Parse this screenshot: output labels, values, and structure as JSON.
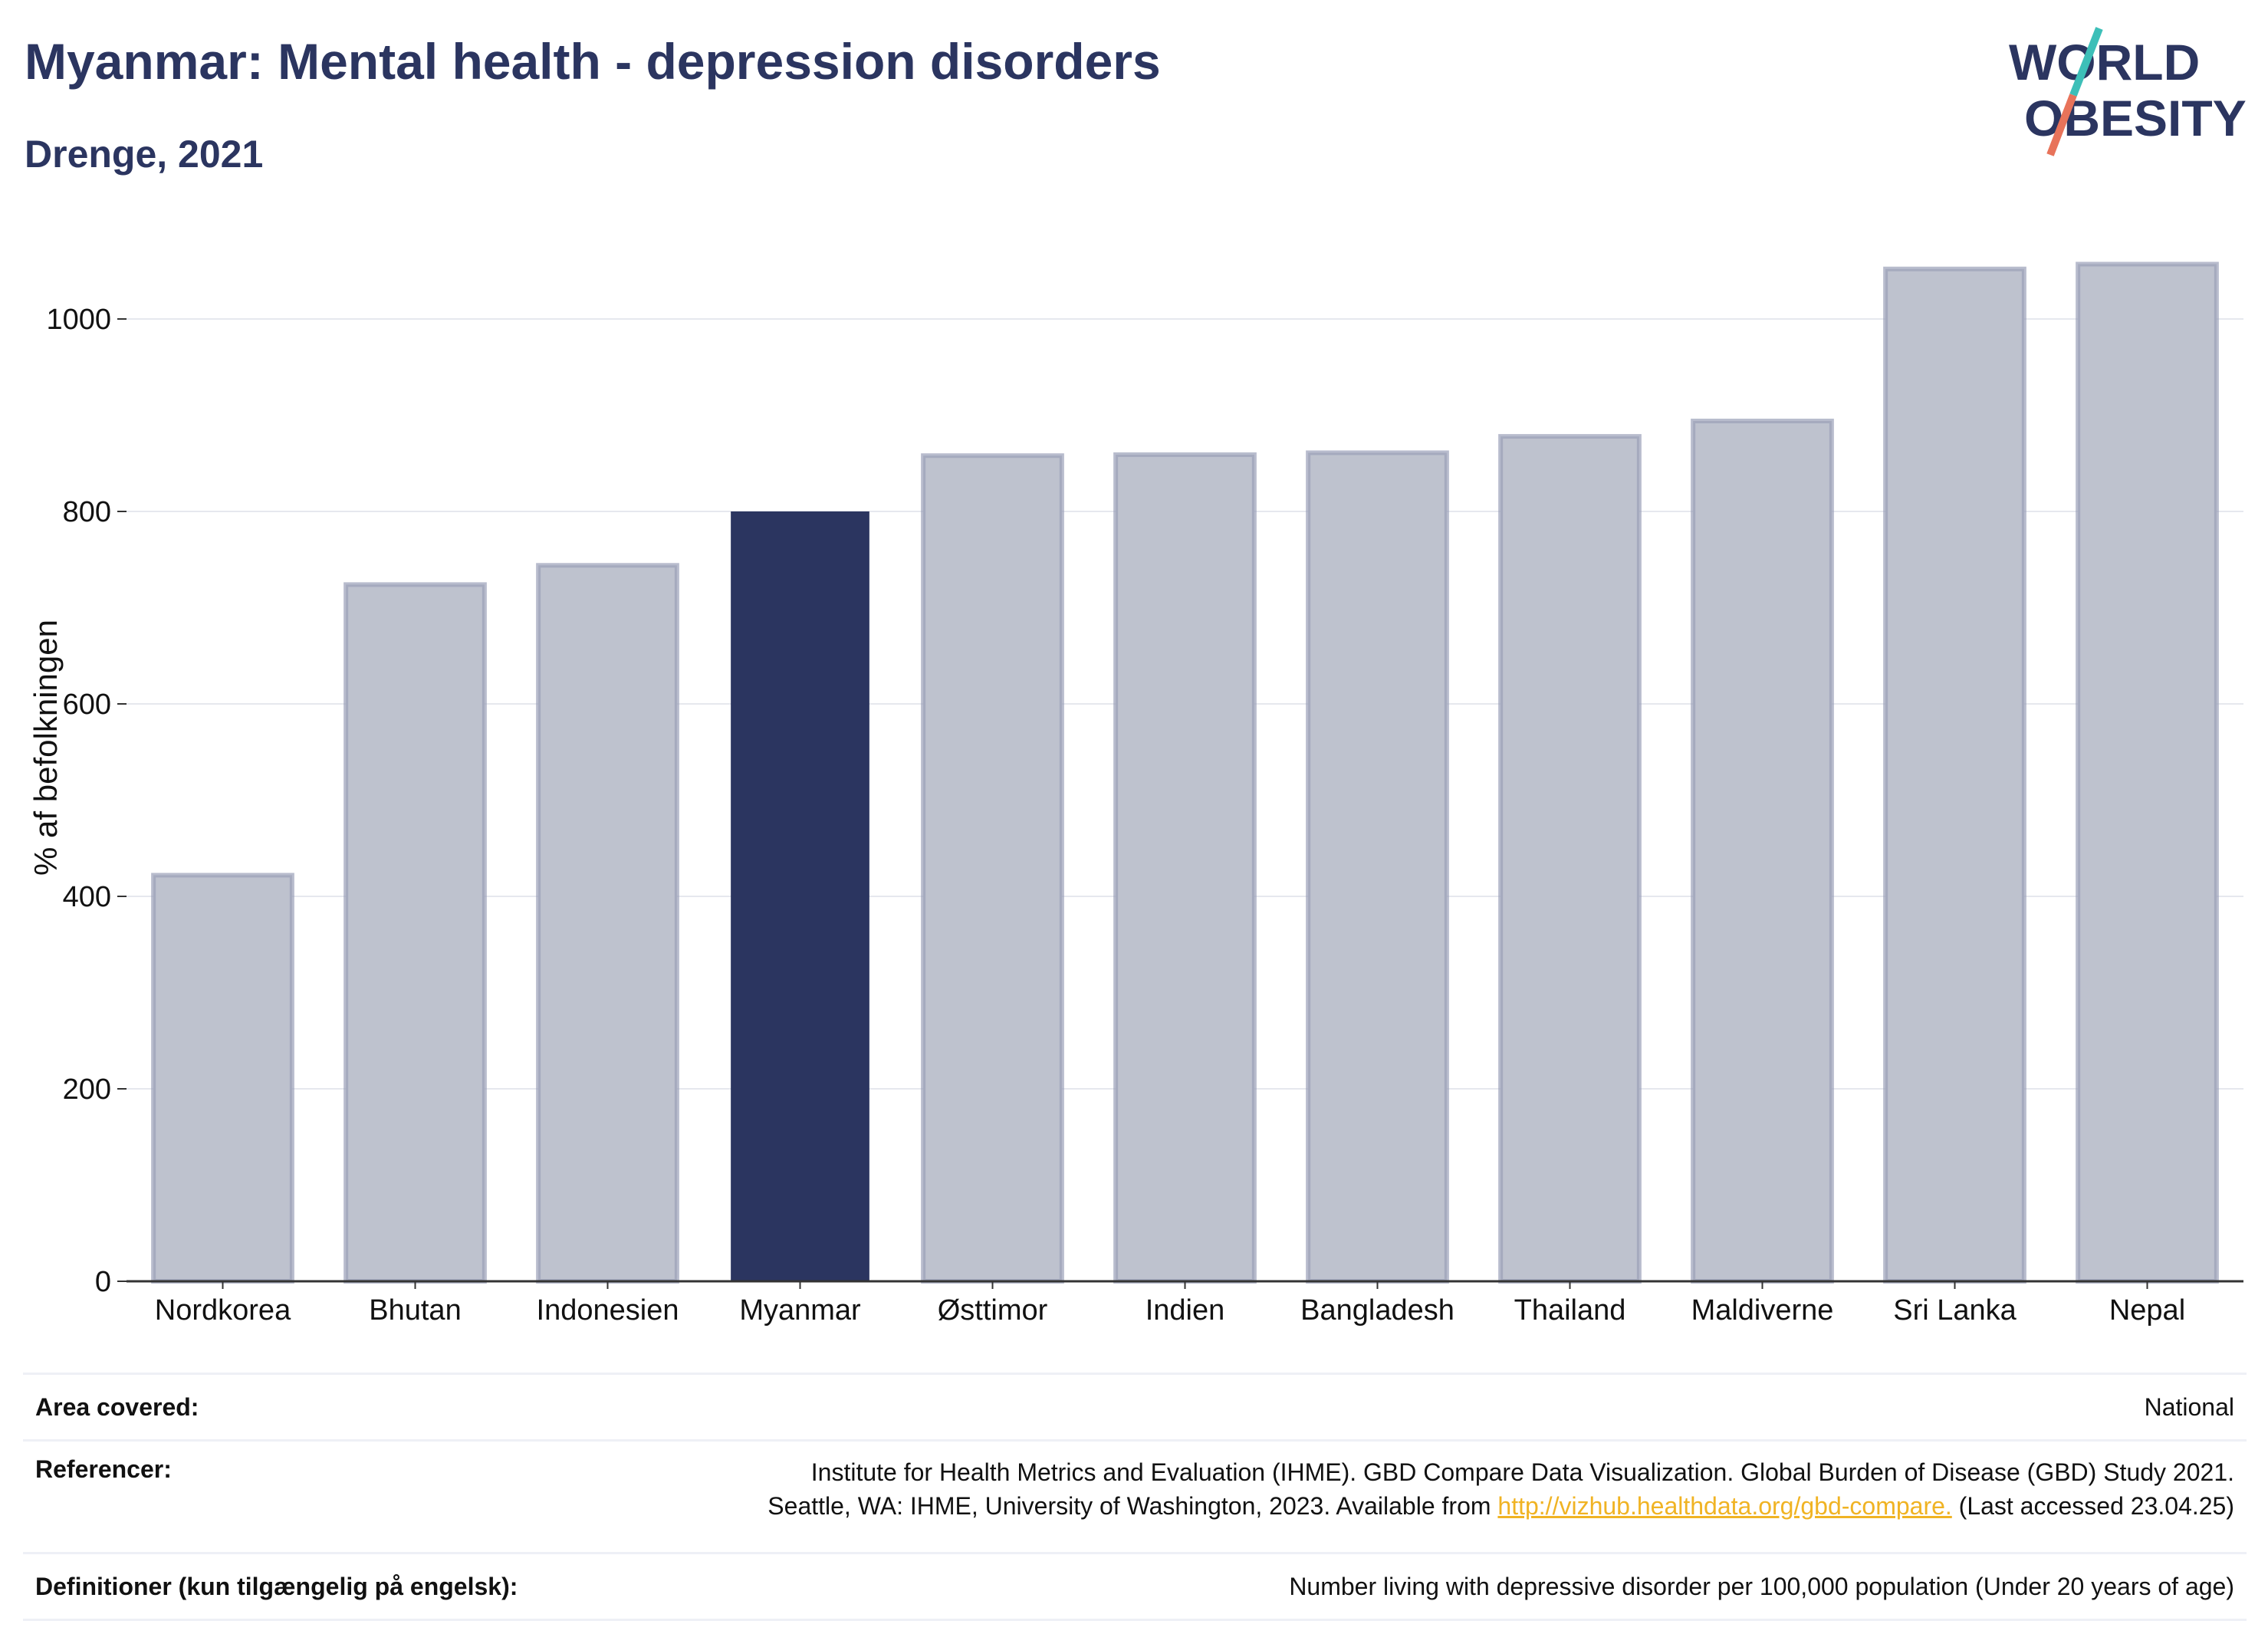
{
  "header": {
    "title": "Myanmar: Mental health - depression disorders",
    "subtitle": "Drenge, 2021"
  },
  "logo": {
    "line1": "WORLD",
    "line2": "OBESITY"
  },
  "colors": {
    "highlight": "#2b3560",
    "other": "#bec2ce",
    "otherStroke": "#9aa0b8",
    "accent1": "#3dbfb8",
    "accent2": "#e8735a"
  },
  "chart_data": {
    "type": "bar",
    "categories": [
      "Nordkorea",
      "Bhutan",
      "Indonesien",
      "Myanmar",
      "Østtimor",
      "Indien",
      "Bangladesh",
      "Thailand",
      "Maldiverne",
      "Sri Lanka",
      "Nepal"
    ],
    "values": [
      422,
      724,
      744,
      800,
      858,
      859,
      861,
      878,
      894,
      1052,
      1057
    ],
    "highlight": "Myanmar",
    "ylabel": "% af befolkningen",
    "yticks": [
      0,
      200,
      400,
      600,
      800,
      1000
    ],
    "ylim": [
      0,
      1095
    ],
    "grid": true
  },
  "meta": {
    "area_label": "Area covered:",
    "area_value": "National",
    "ref_label": "Referencer:",
    "ref_line1": "Institute for Health Metrics and Evaluation (IHME). GBD Compare Data Visualization. Global Burden of Disease (GBD) Study 2021.",
    "ref_line2_pre": "Seattle, WA: IHME, University of Washington, 2023. Available from ",
    "ref_link": "http://vizhub.healthdata.org/gbd-compare.",
    "ref_line2_post": " (Last accessed 23.04.25)",
    "def_label": "Definitioner (kun tilgængelig på engelsk):",
    "def_value": "Number living with depressive disorder per 100,000 population (Under 20 years of age)"
  }
}
